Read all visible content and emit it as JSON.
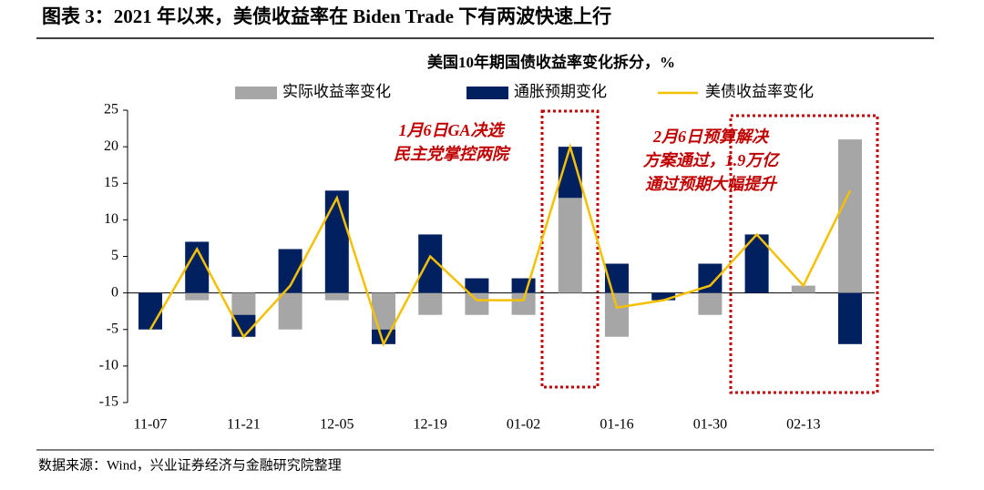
{
  "chart_data": {
    "type": "bar",
    "figure_title": "图表 3：2021 年以来，美债收益率在 Biden Trade 下有两波快速上行",
    "title": "美国10年期国债收益率变化拆分，%",
    "source": "数据来源：Wind，兴业证券经济与金融研究院整理",
    "categories": [
      "11-07",
      null,
      "11-21",
      null,
      "12-05",
      null,
      "12-19",
      null,
      "01-02",
      null,
      "01-16",
      null,
      "01-30",
      null,
      "02-13",
      null
    ],
    "series": [
      {
        "name": "实际收益率变化",
        "type": "bar",
        "color": "#a6a6a6",
        "values": [
          0,
          -1,
          -3,
          -5,
          -1,
          -5,
          -3,
          -3,
          -3,
          13,
          -6,
          0,
          -3,
          0,
          1,
          21
        ]
      },
      {
        "name": "通胀预期变化",
        "type": "bar",
        "color": "#002060",
        "values": [
          -5,
          7,
          -3,
          6,
          14,
          -2,
          8,
          2,
          2,
          7,
          4,
          -1,
          4,
          8,
          0,
          -7
        ]
      },
      {
        "name": "美债收益率变化",
        "type": "line",
        "color": "#f5c000",
        "values": [
          -5,
          6,
          -6,
          1,
          13,
          -7,
          5,
          -1,
          -1,
          20,
          -2,
          -1,
          1,
          8,
          1,
          14
        ]
      }
    ],
    "ylim": [
      -15,
      25
    ],
    "yticks": [
      -15,
      -10,
      -5,
      0,
      5,
      10,
      15,
      20,
      25
    ],
    "annotations": [
      {
        "lines": [
          "1月6日GA决选",
          "民主党掌控两院"
        ]
      },
      {
        "lines": [
          "2月6日预算解决",
          "方案通过，1.9万亿",
          "通过预期大幅提升"
        ]
      }
    ]
  }
}
